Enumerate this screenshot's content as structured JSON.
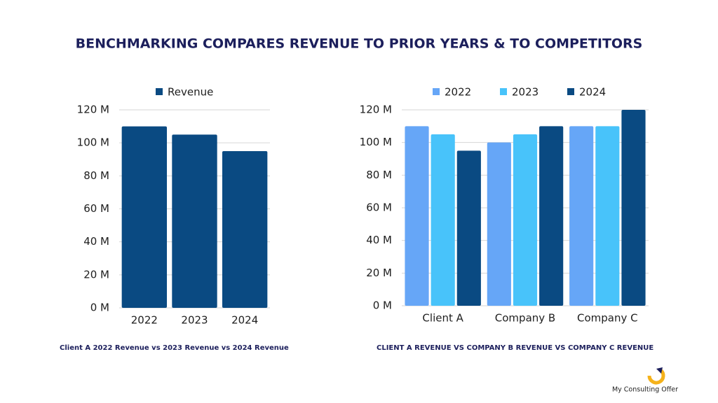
{
  "title": "BENCHMARKING COMPARES REVENUE TO PRIOR YEARS & TO COMPETITORS",
  "chart_data": [
    {
      "type": "bar",
      "caption": "Client A 2022 Revenue vs 2023 Revenue vs 2024 Revenue",
      "categories": [
        "2022",
        "2023",
        "2024"
      ],
      "series": [
        {
          "name": "Revenue",
          "color": "#0a4a82",
          "values": [
            110,
            105,
            95
          ]
        }
      ],
      "ylim": [
        0,
        120
      ],
      "yticks": [
        {
          "value": 0,
          "label": "0 M"
        },
        {
          "value": 20,
          "label": "20 M"
        },
        {
          "value": 40,
          "label": "40 M"
        },
        {
          "value": 60,
          "label": "60 M"
        },
        {
          "value": 80,
          "label": "80 M"
        },
        {
          "value": 100,
          "label": "100 M"
        },
        {
          "value": 120,
          "label": "120 M"
        }
      ],
      "grid": true,
      "legend": "top"
    },
    {
      "type": "bar",
      "caption": "CLIENT A REVENUE VS COMPANY B REVENUE VS COMPANY C REVENUE",
      "categories": [
        "Client A",
        "Company B",
        "Company C"
      ],
      "series": [
        {
          "name": "2022",
          "color": "#66a6f7",
          "values": [
            110,
            100,
            110
          ]
        },
        {
          "name": "2023",
          "color": "#48c3fa",
          "values": [
            105,
            105,
            110
          ]
        },
        {
          "name": "2024",
          "color": "#0a4a82",
          "values": [
            95,
            110,
            120
          ]
        }
      ],
      "ylim": [
        0,
        120
      ],
      "yticks": [
        {
          "value": 0,
          "label": "0 M"
        },
        {
          "value": 20,
          "label": "20 M"
        },
        {
          "value": 40,
          "label": "40 M"
        },
        {
          "value": 60,
          "label": "60 M"
        },
        {
          "value": 80,
          "label": "80 M"
        },
        {
          "value": 100,
          "label": "100 M"
        },
        {
          "value": 120,
          "label": "120 M"
        }
      ],
      "grid": true,
      "legend": "top"
    }
  ],
  "logo": "My Consulting Offer"
}
